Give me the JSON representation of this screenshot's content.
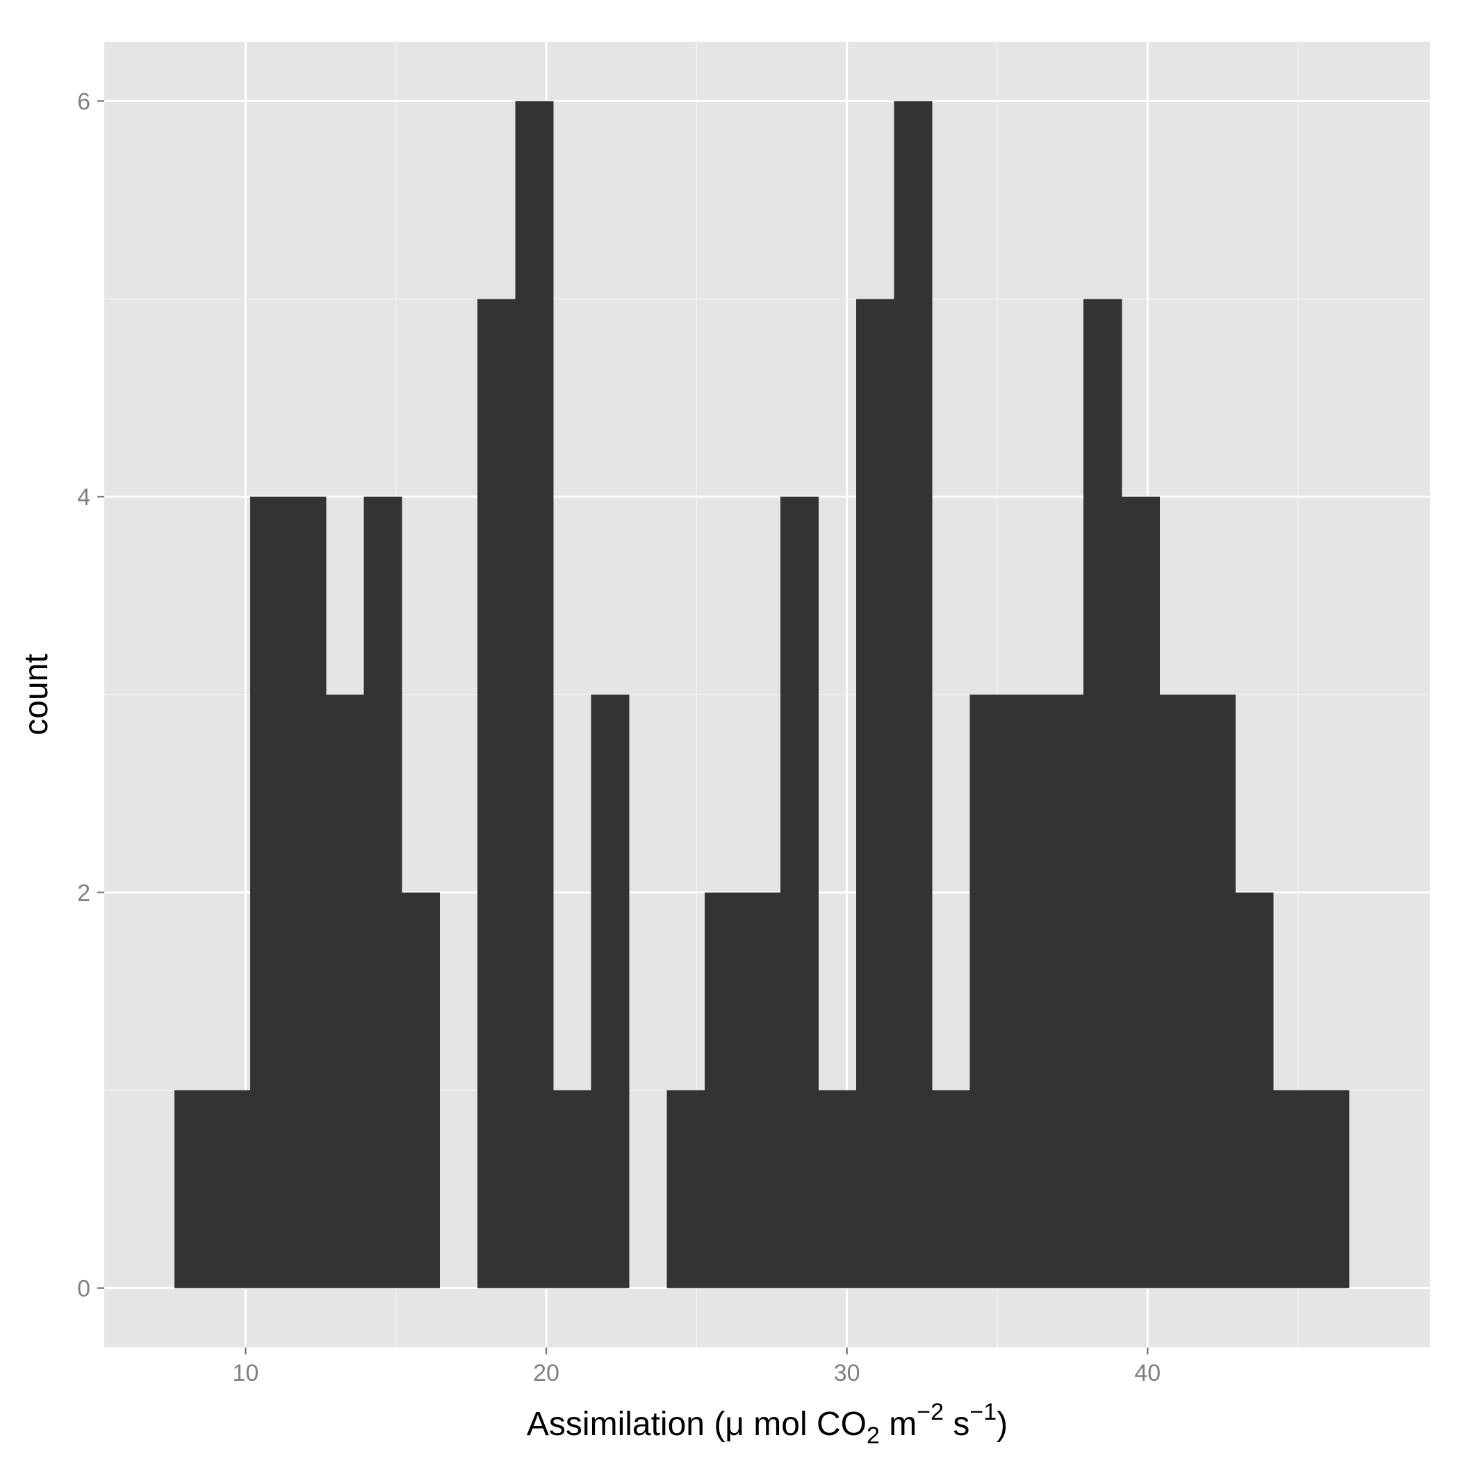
{
  "chart_data": {
    "type": "bar",
    "subtype": "histogram",
    "title": "",
    "xlabel": {
      "parts": [
        {
          "text": "Assimilation (μ mol CO",
          "style": "normal"
        },
        {
          "text": "2",
          "style": "sub"
        },
        {
          "text": " m",
          "style": "normal"
        },
        {
          "text": "−2",
          "style": "sup"
        },
        {
          "text": " s",
          "style": "normal"
        },
        {
          "text": "−1",
          "style": "sup"
        },
        {
          "text": ")",
          "style": "normal"
        }
      ]
    },
    "ylabel": "count",
    "xlim": [
      5.3,
      49.4
    ],
    "ylim": [
      -0.3,
      6.3
    ],
    "x_ticks": [
      10,
      20,
      30,
      40
    ],
    "x_minor_ticks": [
      15,
      25,
      35,
      45
    ],
    "y_ticks": [
      0,
      2,
      4,
      6
    ],
    "y_minor_ticks": [
      1,
      3,
      5
    ],
    "grid": true,
    "background": "#E5E5E5",
    "grid_color": "#FFFFFF",
    "bar_color": "#333333",
    "tick_label_color": "#7F7F7F",
    "bins": [
      {
        "x0": 7.63,
        "x1": 8.89,
        "count": 1
      },
      {
        "x0": 8.89,
        "x1": 10.15,
        "count": 1
      },
      {
        "x0": 10.15,
        "x1": 11.41,
        "count": 4
      },
      {
        "x0": 11.41,
        "x1": 12.67,
        "count": 4
      },
      {
        "x0": 12.67,
        "x1": 13.93,
        "count": 3
      },
      {
        "x0": 13.93,
        "x1": 15.19,
        "count": 4
      },
      {
        "x0": 15.19,
        "x1": 16.45,
        "count": 2
      },
      {
        "x0": 16.45,
        "x1": 17.71,
        "count": 0
      },
      {
        "x0": 17.71,
        "x1": 18.97,
        "count": 5
      },
      {
        "x0": 18.97,
        "x1": 20.23,
        "count": 6
      },
      {
        "x0": 20.23,
        "x1": 21.49,
        "count": 1
      },
      {
        "x0": 21.49,
        "x1": 22.75,
        "count": 3
      },
      {
        "x0": 22.75,
        "x1": 24.01,
        "count": 0
      },
      {
        "x0": 24.01,
        "x1": 25.27,
        "count": 1
      },
      {
        "x0": 25.27,
        "x1": 26.53,
        "count": 2
      },
      {
        "x0": 26.53,
        "x1": 27.79,
        "count": 2
      },
      {
        "x0": 27.79,
        "x1": 29.05,
        "count": 4
      },
      {
        "x0": 29.05,
        "x1": 30.31,
        "count": 1
      },
      {
        "x0": 30.31,
        "x1": 31.57,
        "count": 5
      },
      {
        "x0": 31.57,
        "x1": 32.83,
        "count": 6
      },
      {
        "x0": 32.83,
        "x1": 34.09,
        "count": 1
      },
      {
        "x0": 34.09,
        "x1": 35.35,
        "count": 3
      },
      {
        "x0": 35.35,
        "x1": 36.61,
        "count": 3
      },
      {
        "x0": 36.61,
        "x1": 37.87,
        "count": 3
      },
      {
        "x0": 37.87,
        "x1": 39.13,
        "count": 5
      },
      {
        "x0": 39.13,
        "x1": 40.39,
        "count": 4
      },
      {
        "x0": 40.39,
        "x1": 41.65,
        "count": 3
      },
      {
        "x0": 41.65,
        "x1": 42.91,
        "count": 3
      },
      {
        "x0": 42.91,
        "x1": 44.17,
        "count": 2
      },
      {
        "x0": 44.17,
        "x1": 45.43,
        "count": 1
      },
      {
        "x0": 45.43,
        "x1": 46.69,
        "count": 1
      }
    ]
  }
}
